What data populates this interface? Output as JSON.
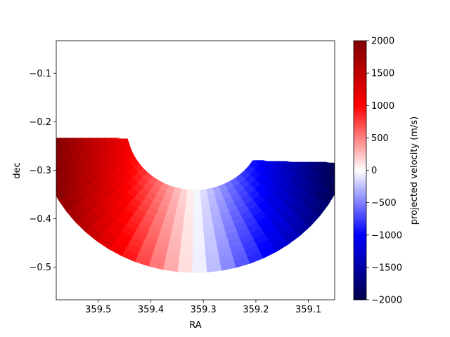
{
  "chart_data": {
    "type": "heatmap",
    "title": "",
    "xlabel": "RA",
    "ylabel": "dec",
    "x_ticks": [
      {
        "value": 359.5,
        "label": "359.5"
      },
      {
        "value": 359.4,
        "label": "359.4"
      },
      {
        "value": 359.3,
        "label": "359.3"
      },
      {
        "value": 359.2,
        "label": "359.2"
      },
      {
        "value": 359.1,
        "label": "359.1"
      }
    ],
    "y_ticks": [
      {
        "value": -0.1,
        "label": "−0.1"
      },
      {
        "value": -0.2,
        "label": "−0.2"
      },
      {
        "value": -0.3,
        "label": "−0.3"
      },
      {
        "value": -0.4,
        "label": "−0.4"
      },
      {
        "value": -0.5,
        "label": "−0.5"
      }
    ],
    "xlim": [
      359.58,
      359.05
    ],
    "ylim": [
      -0.567,
      -0.033
    ],
    "x_inverted": true,
    "region": {
      "shape": "lower half-annulus segment",
      "center_ra": 359.316,
      "center_dec": -0.211,
      "outer_radius_deg": 0.3,
      "inner_radius_deg": 0.13,
      "upper_edge_dec_left": -0.23,
      "upper_edge_dec_right": -0.29
    },
    "colorbar": {
      "label": "projected velocity (m/s)",
      "cmap": "seismic",
      "range": [
        -2000,
        2000
      ],
      "ticks": [
        {
          "value": 2000,
          "label": "2000"
        },
        {
          "value": 1500,
          "label": "1500"
        },
        {
          "value": 1000,
          "label": "1000"
        },
        {
          "value": 500,
          "label": "500"
        },
        {
          "value": 0,
          "label": "0"
        },
        {
          "value": -500,
          "label": "−500"
        },
        {
          "value": -1000,
          "label": "−1000"
        },
        {
          "value": -1500,
          "label": "−1500"
        },
        {
          "value": -2000,
          "label": "−2000"
        }
      ]
    }
  }
}
